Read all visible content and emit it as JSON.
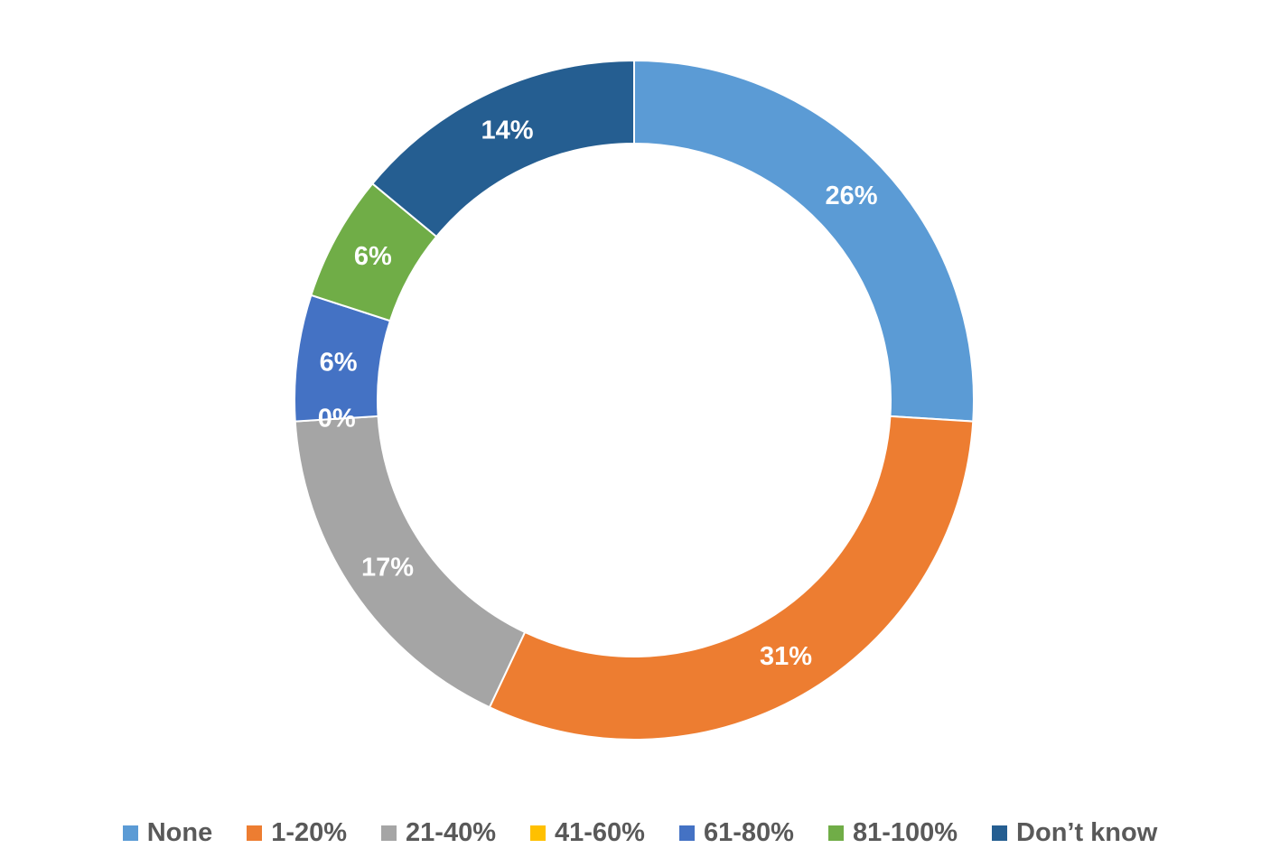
{
  "chart_data": {
    "type": "pie",
    "variant": "donut",
    "categories": [
      "None",
      "1-20%",
      "21-40%",
      "41-60%",
      "61-80%",
      "81-100%",
      "Don’t know"
    ],
    "values": [
      26,
      31,
      17,
      0,
      6,
      6,
      14
    ],
    "labels": [
      "26%",
      "31%",
      "17%",
      "0%",
      "6%",
      "6%",
      "14%"
    ],
    "colors": [
      "#5B9BD5",
      "#ED7D31",
      "#A5A5A5",
      "#FFC000",
      "#4472C4",
      "#70AD47",
      "#255E91"
    ],
    "start_angle": "top",
    "direction": "clockwise",
    "legend_position": "bottom",
    "title": ""
  }
}
